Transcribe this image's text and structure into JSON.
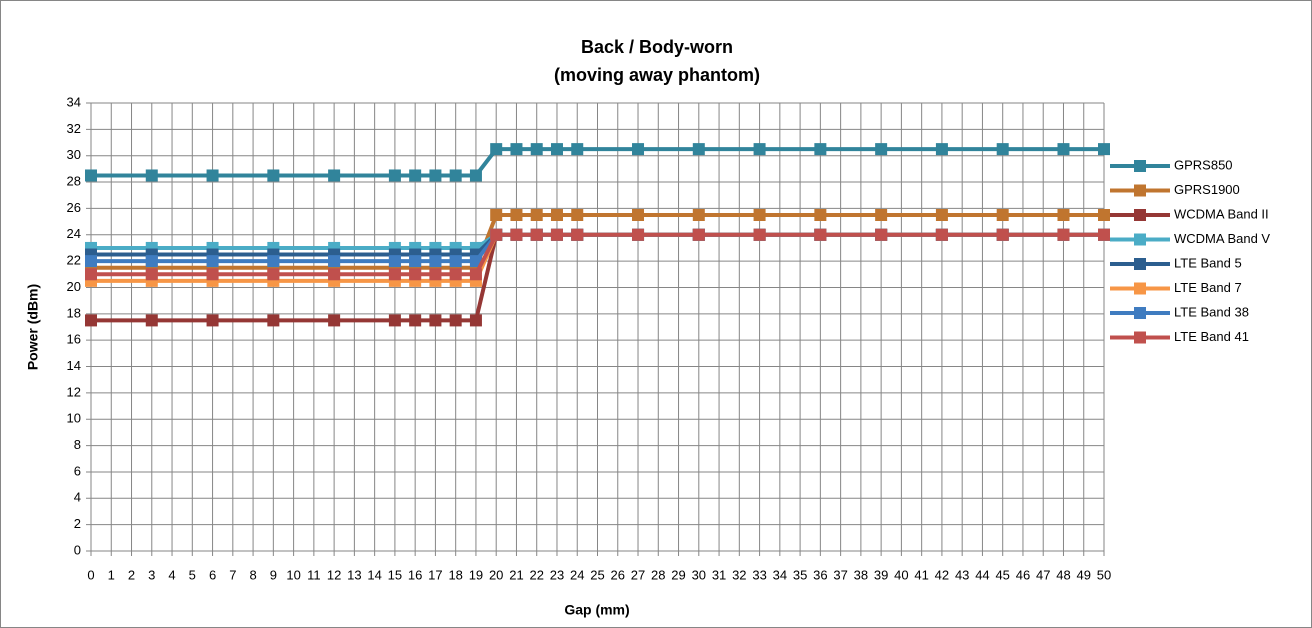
{
  "chart_data": {
    "type": "line",
    "title": "Back / Body-worn",
    "subtitle": "(moving away phantom)",
    "x_label": "Gap (mm)",
    "y_label": "Power (dBm)",
    "x": [
      0,
      3,
      6,
      9,
      12,
      15,
      16,
      17,
      18,
      19,
      20,
      21,
      22,
      23,
      24,
      27,
      30,
      33,
      36,
      39,
      42,
      45,
      48,
      50
    ],
    "series": [
      {
        "name": "GPRS850",
        "color": "#31849b",
        "values": [
          28.5,
          28.5,
          28.5,
          28.5,
          28.5,
          28.5,
          28.5,
          28.5,
          28.5,
          28.5,
          30.5,
          30.5,
          30.5,
          30.5,
          30.5,
          30.5,
          30.5,
          30.5,
          30.5,
          30.5,
          30.5,
          30.5,
          30.5,
          30.5
        ]
      },
      {
        "name": "GPRS1900",
        "color": "#c0752f",
        "values": [
          21.5,
          21.5,
          21.5,
          21.5,
          21.5,
          21.5,
          21.5,
          21.5,
          21.5,
          21.5,
          25.5,
          25.5,
          25.5,
          25.5,
          25.5,
          25.5,
          25.5,
          25.5,
          25.5,
          25.5,
          25.5,
          25.5,
          25.5,
          25.5
        ]
      },
      {
        "name": "WCDMA Band II",
        "color": "#953735",
        "values": [
          17.5,
          17.5,
          17.5,
          17.5,
          17.5,
          17.5,
          17.5,
          17.5,
          17.5,
          17.5,
          24,
          24,
          24,
          24,
          24,
          24,
          24,
          24,
          24,
          24,
          24,
          24,
          24,
          24
        ]
      },
      {
        "name": "WCDMA Band V",
        "color": "#4bacc6",
        "values": [
          23,
          23,
          23,
          23,
          23,
          23,
          23,
          23,
          23,
          23,
          24,
          24,
          24,
          24,
          24,
          24,
          24,
          24,
          24,
          24,
          24,
          24,
          24,
          24
        ]
      },
      {
        "name": "LTE Band 5",
        "color": "#2c5e8f",
        "values": [
          22.5,
          22.5,
          22.5,
          22.5,
          22.5,
          22.5,
          22.5,
          22.5,
          22.5,
          22.5,
          24,
          24,
          24,
          24,
          24,
          24,
          24,
          24,
          24,
          24,
          24,
          24,
          24,
          24
        ]
      },
      {
        "name": "LTE Band 7",
        "color": "#f79646",
        "values": [
          20.5,
          20.5,
          20.5,
          20.5,
          20.5,
          20.5,
          20.5,
          20.5,
          20.5,
          20.5,
          24,
          24,
          24,
          24,
          24,
          24,
          24,
          24,
          24,
          24,
          24,
          24,
          24,
          24
        ]
      },
      {
        "name": "LTE Band 38",
        "color": "#3f7cc0",
        "values": [
          22,
          22,
          22,
          22,
          22,
          22,
          22,
          22,
          22,
          22,
          24,
          24,
          24,
          24,
          24,
          24,
          24,
          24,
          24,
          24,
          24,
          24,
          24,
          24
        ]
      },
      {
        "name": "LTE Band 41",
        "color": "#c0504d",
        "values": [
          21,
          21,
          21,
          21,
          21,
          21,
          21,
          21,
          21,
          21,
          24,
          24,
          24,
          24,
          24,
          24,
          24,
          24,
          24,
          24,
          24,
          24,
          24,
          24
        ]
      }
    ],
    "xlim": [
      0,
      50
    ],
    "xticks": [
      0,
      1,
      2,
      3,
      4,
      5,
      6,
      7,
      8,
      9,
      10,
      11,
      12,
      13,
      14,
      15,
      16,
      17,
      18,
      19,
      20,
      21,
      22,
      23,
      24,
      25,
      26,
      27,
      28,
      29,
      30,
      31,
      32,
      33,
      34,
      35,
      36,
      37,
      38,
      39,
      40,
      41,
      42,
      43,
      44,
      45,
      46,
      47,
      48,
      49,
      50
    ],
    "ylim": [
      0,
      34
    ],
    "yticks": [
      0,
      2,
      4,
      6,
      8,
      10,
      12,
      14,
      16,
      18,
      20,
      22,
      24,
      26,
      28,
      30,
      32,
      34
    ],
    "grid": true,
    "legend": "right"
  }
}
